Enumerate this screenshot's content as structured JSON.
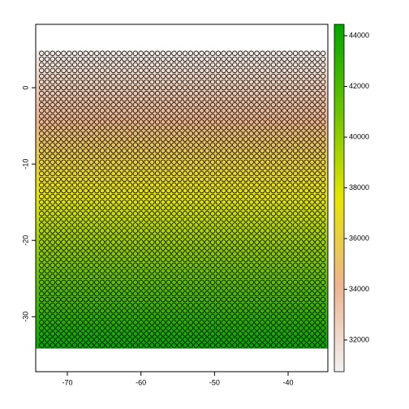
{
  "chart_data": {
    "type": "heatmap",
    "x": [
      -73.5,
      -72.75,
      -72,
      -71.25,
      -70.5,
      -69.75,
      -69,
      -68.25,
      -67.5,
      -66.75,
      -66,
      -65.25,
      -64.5,
      -63.75,
      -63,
      -62.25,
      -61.5,
      -60.75,
      -60,
      -59.25,
      -58.5,
      -57.75,
      -57,
      -56.25,
      -55.5,
      -54.75,
      -54,
      -53.25,
      -52.5,
      -51.75,
      -51,
      -50.25,
      -49.5,
      -48.75,
      -48,
      -47.25,
      -46.5,
      -45.75,
      -45,
      -44.25,
      -43.5,
      -42.75,
      -42,
      -41.25,
      -40.5,
      -39.75,
      -39,
      -38.25,
      -37.5,
      -36.75,
      -36,
      -35.25
    ],
    "y": [
      4.5,
      3.75,
      3,
      2.25,
      1.5,
      0.75,
      0,
      -0.75,
      -1.5,
      -2.25,
      -3,
      -3.75,
      -4.5,
      -5.25,
      -6,
      -6.75,
      -7.5,
      -8.25,
      -9,
      -9.75,
      -10.5,
      -11.25,
      -12,
      -12.75,
      -13.5,
      -14.25,
      -15,
      -15.75,
      -16.5,
      -17.25,
      -18,
      -18.75,
      -19.5,
      -20.25,
      -21,
      -21.75,
      -22.5,
      -23.25,
      -24,
      -24.75,
      -25.5,
      -26.25,
      -27,
      -27.75,
      -28.5,
      -29.25,
      -30,
      -30.75,
      -31.5,
      -32.25,
      -33,
      -33.75
    ],
    "values": [
      31200,
      31456,
      31712,
      31968,
      32224,
      32480,
      32736,
      32992,
      33248,
      33504,
      33760,
      34016,
      34272,
      34528,
      34784,
      35040,
      35296,
      35552,
      35808,
      36064,
      36320,
      36576,
      36832,
      37088,
      37344,
      37600,
      37856,
      38112,
      38368,
      38624,
      38880,
      39136,
      39392,
      39648,
      39904,
      40160,
      40416,
      40672,
      40928,
      41184,
      41440,
      41696,
      41952,
      42208,
      42464,
      42720,
      42976,
      43232,
      43488,
      43744,
      44000,
      44256
    ],
    "colors": [
      "#F2F2F2",
      "#EDB48E",
      "#E6E600",
      "#6CC300",
      "#00A600"
    ],
    "point_color": "#000000",
    "xlim": [
      -74.3,
      -34.6
    ],
    "xticks": [
      -70,
      -60,
      -50,
      -40
    ],
    "ylim": [
      -37.2,
      8.3
    ],
    "yticks": [
      0,
      -10,
      -20,
      -30
    ],
    "zlim": [
      30750,
      44450
    ],
    "zticks": [
      32000,
      34000,
      36000,
      38000,
      40000,
      42000,
      44000
    ]
  }
}
